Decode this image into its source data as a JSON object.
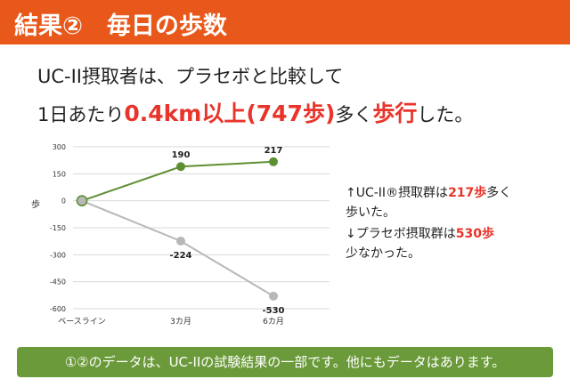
{
  "header": {
    "title": "結果②　毎日の歩数"
  },
  "lead": {
    "line1": "UC-II摂取者は、プラセボと比較して",
    "line2_prefix": "1日あたり",
    "line2_highlight": "0.4km以上(747歩)",
    "line2_mid": "多く",
    "line2_highlight2": "歩行",
    "line2_suffix": "した。"
  },
  "chart_data": {
    "type": "line",
    "categories": [
      "ベースライン",
      "3カ月",
      "6カ月"
    ],
    "ylabel": "歩",
    "ylim": [
      -600,
      300
    ],
    "yticks": [
      300,
      150,
      0,
      -150,
      -300,
      -450,
      -600
    ],
    "grid": true,
    "series": [
      {
        "values": [
          0,
          190,
          217
        ],
        "color": "#5f8f33",
        "labels": [
          "",
          "190",
          "217"
        ]
      },
      {
        "values": [
          0,
          -224,
          -530
        ],
        "color": "#b8b8b8",
        "labels": [
          "",
          "-224",
          "-530"
        ]
      }
    ]
  },
  "notes": {
    "uc2_prefix": "↑UC-II®摂取群は",
    "uc2_value": "217歩",
    "uc2_suffix": "多く",
    "uc2_line2": "歩いた。",
    "placebo_prefix": "↓プラセボ摂取群は",
    "placebo_value": "530歩",
    "placebo_line2": "少なかった。"
  },
  "footer": {
    "text": "①②のデータは、UC-IIの試験結果の一部です。他にもデータはあります。"
  }
}
